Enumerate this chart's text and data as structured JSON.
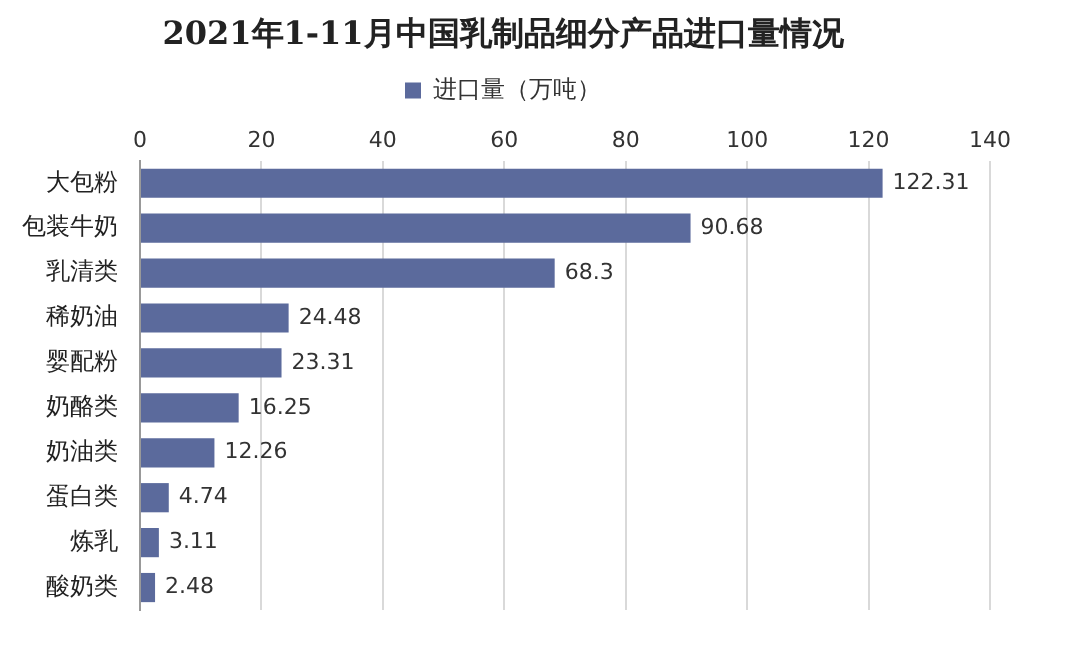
{
  "chart_data": {
    "type": "bar",
    "orientation": "horizontal",
    "title": "2021年1-11月中国乳制品细分产品进口量情况",
    "categories": [
      "大包粉",
      "包装牛奶",
      "乳清类",
      "稀奶油",
      "婴配粉",
      "奶酪类",
      "奶油类",
      "蛋白类",
      "炼乳",
      "酸奶类"
    ],
    "series": [
      {
        "name": "进口量（万吨）",
        "color": "#5b6a9c",
        "values": [
          122.31,
          90.68,
          68.3,
          24.48,
          23.31,
          16.25,
          12.26,
          4.74,
          3.11,
          2.48
        ]
      }
    ],
    "xlim": [
      0,
      140
    ],
    "xticks": [
      0,
      20,
      40,
      60,
      80,
      100,
      120,
      140
    ],
    "grid": "x",
    "legend": "top",
    "data_labels": true
  }
}
